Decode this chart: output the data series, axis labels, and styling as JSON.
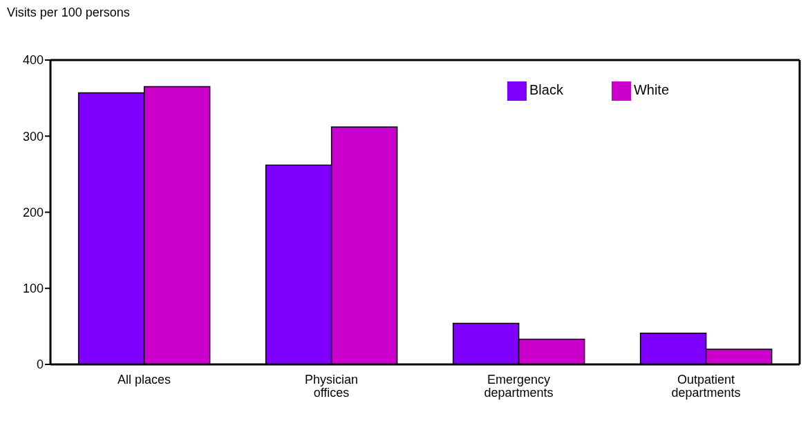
{
  "chart_data": {
    "type": "bar",
    "ylabel": "Visits per 100 persons",
    "categories": [
      "All places",
      "Physician offices",
      "Emergency departments",
      "Outpatient departments"
    ],
    "series": [
      {
        "name": "Black",
        "color": "#7f00ff",
        "values": [
          357,
          262,
          54,
          41
        ]
      },
      {
        "name": "White",
        "color": "#cc00cc",
        "values": [
          365,
          312,
          33,
          20
        ]
      }
    ],
    "ylim": [
      0,
      400
    ],
    "yticks": [
      0,
      100,
      200,
      300,
      400
    ],
    "grid": false,
    "legend": "top right"
  }
}
